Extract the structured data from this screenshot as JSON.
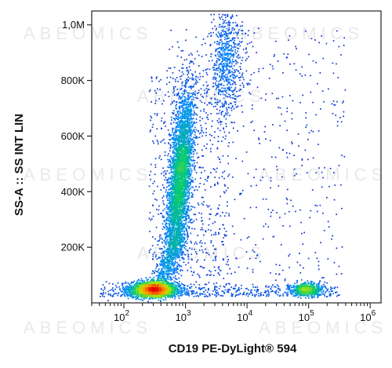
{
  "chart_data": {
    "type": "scatter",
    "title": "",
    "xlabel": "CD19 PE-DyLight® 594",
    "ylabel": "SS-A :: SS INT LIN",
    "x_scale": "log",
    "xlim": [
      30,
      1500000
    ],
    "ylim": [
      0,
      1050000
    ],
    "x_ticks": [
      {
        "label": "10",
        "exp": "2",
        "value": 100
      },
      {
        "label": "10",
        "exp": "3",
        "value": 1000
      },
      {
        "label": "10",
        "exp": "4",
        "value": 10000
      },
      {
        "label": "10",
        "exp": "5",
        "value": 100000
      },
      {
        "label": "10",
        "exp": "6",
        "value": 1000000
      }
    ],
    "y_ticks": [
      {
        "label": "200K",
        "value": 200000
      },
      {
        "label": "400K",
        "value": 400000
      },
      {
        "label": "600K",
        "value": 600000
      },
      {
        "label": "800K",
        "value": 800000
      },
      {
        "label": "1,0M",
        "value": 1000000
      }
    ],
    "grid": false,
    "legend": "none",
    "watermark": "ABEOMICS",
    "populations": [
      {
        "x_center": 300,
        "y_center": 50000,
        "density": "high"
      },
      {
        "x_center": 800,
        "y_center": 450000,
        "density": "high"
      },
      {
        "x_center": 4500,
        "y_center": 880000,
        "density": "low"
      },
      {
        "x_center": 90000,
        "y_center": 50000,
        "density": "medium"
      }
    ]
  }
}
